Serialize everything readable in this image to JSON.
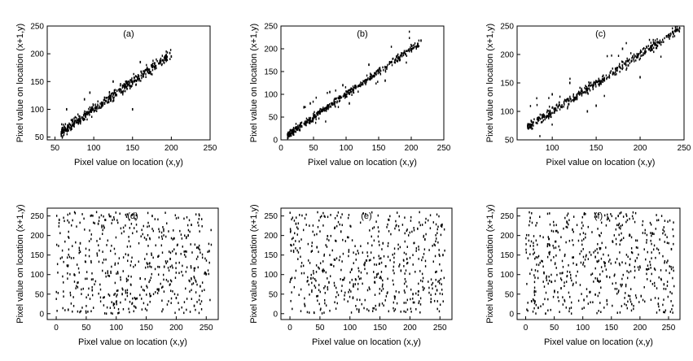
{
  "chart_data": [
    {
      "type": "scatter",
      "title": "(a)",
      "xlabel": "Pixel value on location (x,y)",
      "ylabel": "Pixel value on location (x+1,y)",
      "xlim": [
        40,
        250
      ],
      "ylim": [
        45,
        250
      ],
      "xticks": [
        50,
        100,
        150,
        200,
        250
      ],
      "yticks": [
        50,
        100,
        150,
        200,
        250
      ],
      "grid": false,
      "pattern": "strong positive correlation, points along y = x",
      "series": [
        {
          "name": "",
          "x": [
            58,
            62,
            66,
            70,
            75,
            80,
            86,
            92,
            98,
            104,
            110,
            116,
            122,
            128,
            134,
            140,
            146,
            152,
            158,
            164,
            170,
            178,
            190,
            200,
            65,
            95,
            125,
            150,
            88,
            160
          ],
          "y": [
            56,
            63,
            67,
            72,
            74,
            82,
            85,
            94,
            99,
            103,
            112,
            115,
            124,
            127,
            136,
            138,
            148,
            151,
            160,
            163,
            172,
            176,
            188,
            195,
            100,
            130,
            150,
            100,
            118,
            185
          ]
        }
      ]
    },
    {
      "type": "scatter",
      "title": "(b)",
      "xlabel": "Pixel value on location (x,y)",
      "ylabel": "Pixel value on location (x+1,y)",
      "xlim": [
        0,
        250
      ],
      "ylim": [
        0,
        250
      ],
      "xticks": [
        0,
        50,
        100,
        150,
        200,
        250
      ],
      "yticks": [
        0,
        50,
        100,
        150,
        200,
        250
      ],
      "grid": false,
      "pattern": "strong positive correlation, points along y = x",
      "series": [
        {
          "name": "",
          "x": [
            10,
            15,
            20,
            25,
            30,
            40,
            50,
            60,
            70,
            80,
            90,
            100,
            110,
            120,
            130,
            140,
            150,
            160,
            170,
            180,
            190,
            200,
            210,
            215,
            45,
            75,
            105,
            135,
            95,
            160
          ],
          "y": [
            12,
            14,
            22,
            24,
            31,
            39,
            52,
            58,
            71,
            79,
            92,
            99,
            111,
            119,
            131,
            139,
            151,
            159,
            171,
            179,
            191,
            199,
            211,
            218,
            80,
            105,
            80,
            165,
            120,
            130
          ]
        }
      ]
    },
    {
      "type": "scatter",
      "title": "(c)",
      "xlabel": "Pixel value on location (x,y)",
      "ylabel": "Pixel value on location (x+1,y)",
      "xlim": [
        60,
        250
      ],
      "ylim": [
        50,
        250
      ],
      "xticks": [
        100,
        150,
        200,
        250
      ],
      "yticks": [
        50,
        100,
        150,
        200,
        250
      ],
      "grid": false,
      "pattern": "strong positive correlation, points along y = x",
      "series": [
        {
          "name": "",
          "x": [
            72,
            78,
            84,
            90,
            96,
            102,
            110,
            118,
            126,
            134,
            142,
            150,
            158,
            166,
            174,
            182,
            190,
            198,
            206,
            214,
            222,
            230,
            238,
            245,
            120,
            150,
            180,
            200,
            140,
            100
          ],
          "y": [
            75,
            80,
            85,
            92,
            95,
            104,
            108,
            119,
            124,
            136,
            140,
            152,
            156,
            168,
            172,
            184,
            188,
            200,
            204,
            216,
            220,
            232,
            236,
            246,
            150,
            110,
            210,
            160,
            100,
            130
          ]
        }
      ]
    },
    {
      "type": "scatter",
      "title": "(d)",
      "xlabel": "Pixel value on location (x,y)",
      "ylabel": "Pixel value on location (x+1,y)",
      "xlim": [
        -15,
        270
      ],
      "ylim": [
        -15,
        270
      ],
      "xticks": [
        0,
        50,
        100,
        150,
        200,
        250
      ],
      "yticks": [
        0,
        50,
        100,
        150,
        200,
        250
      ],
      "grid": false,
      "pattern": "uniformly scattered, no correlation",
      "series": [
        {
          "name": "",
          "x": [
            5,
            20,
            40,
            60,
            80,
            100,
            120,
            140,
            160,
            180,
            200,
            220,
            240,
            255,
            30,
            70,
            110,
            150,
            190,
            230
          ],
          "y": [
            240,
            10,
            180,
            60,
            220,
            30,
            150,
            90,
            250,
            120,
            40,
            200,
            70,
            160,
            100,
            230,
            50,
            190,
            140,
            20
          ]
        }
      ]
    },
    {
      "type": "scatter",
      "title": "(e)",
      "xlabel": "Pixel value on location (x,y)",
      "ylabel": "Pixel value on location (x+1,y)",
      "xlim": [
        -15,
        270
      ],
      "ylim": [
        -15,
        270
      ],
      "xticks": [
        0,
        50,
        100,
        150,
        200,
        250
      ],
      "yticks": [
        0,
        50,
        100,
        150,
        200,
        250
      ],
      "grid": false,
      "pattern": "uniformly scattered, no correlation",
      "series": [
        {
          "name": "",
          "x": [
            10,
            25,
            45,
            65,
            85,
            105,
            125,
            145,
            165,
            185,
            205,
            225,
            245,
            255,
            35,
            75,
            115,
            155,
            195,
            235
          ],
          "y": [
            230,
            20,
            170,
            80,
            210,
            40,
            130,
            100,
            240,
            110,
            50,
            190,
            60,
            150,
            90,
            220,
            10,
            180,
            140,
            30
          ]
        }
      ]
    },
    {
      "type": "scatter",
      "title": "(f)",
      "xlabel": "Pixel value on location (x,y)",
      "ylabel": "Pixel value on location (x+1,y)",
      "xlim": [
        -15,
        270
      ],
      "ylim": [
        -15,
        270
      ],
      "xticks": [
        0,
        50,
        100,
        150,
        200,
        250
      ],
      "yticks": [
        0,
        50,
        100,
        150,
        200,
        250
      ],
      "grid": false,
      "pattern": "uniformly scattered, no correlation",
      "series": [
        {
          "name": "",
          "x": [
            8,
            22,
            42,
            62,
            82,
            102,
            122,
            142,
            162,
            182,
            202,
            222,
            242,
            255,
            32,
            72,
            112,
            152,
            192,
            232
          ],
          "y": [
            245,
            15,
            175,
            65,
            215,
            35,
            145,
            95,
            250,
            125,
            45,
            205,
            75,
            165,
            105,
            235,
            55,
            185,
            135,
            25
          ]
        }
      ]
    }
  ]
}
